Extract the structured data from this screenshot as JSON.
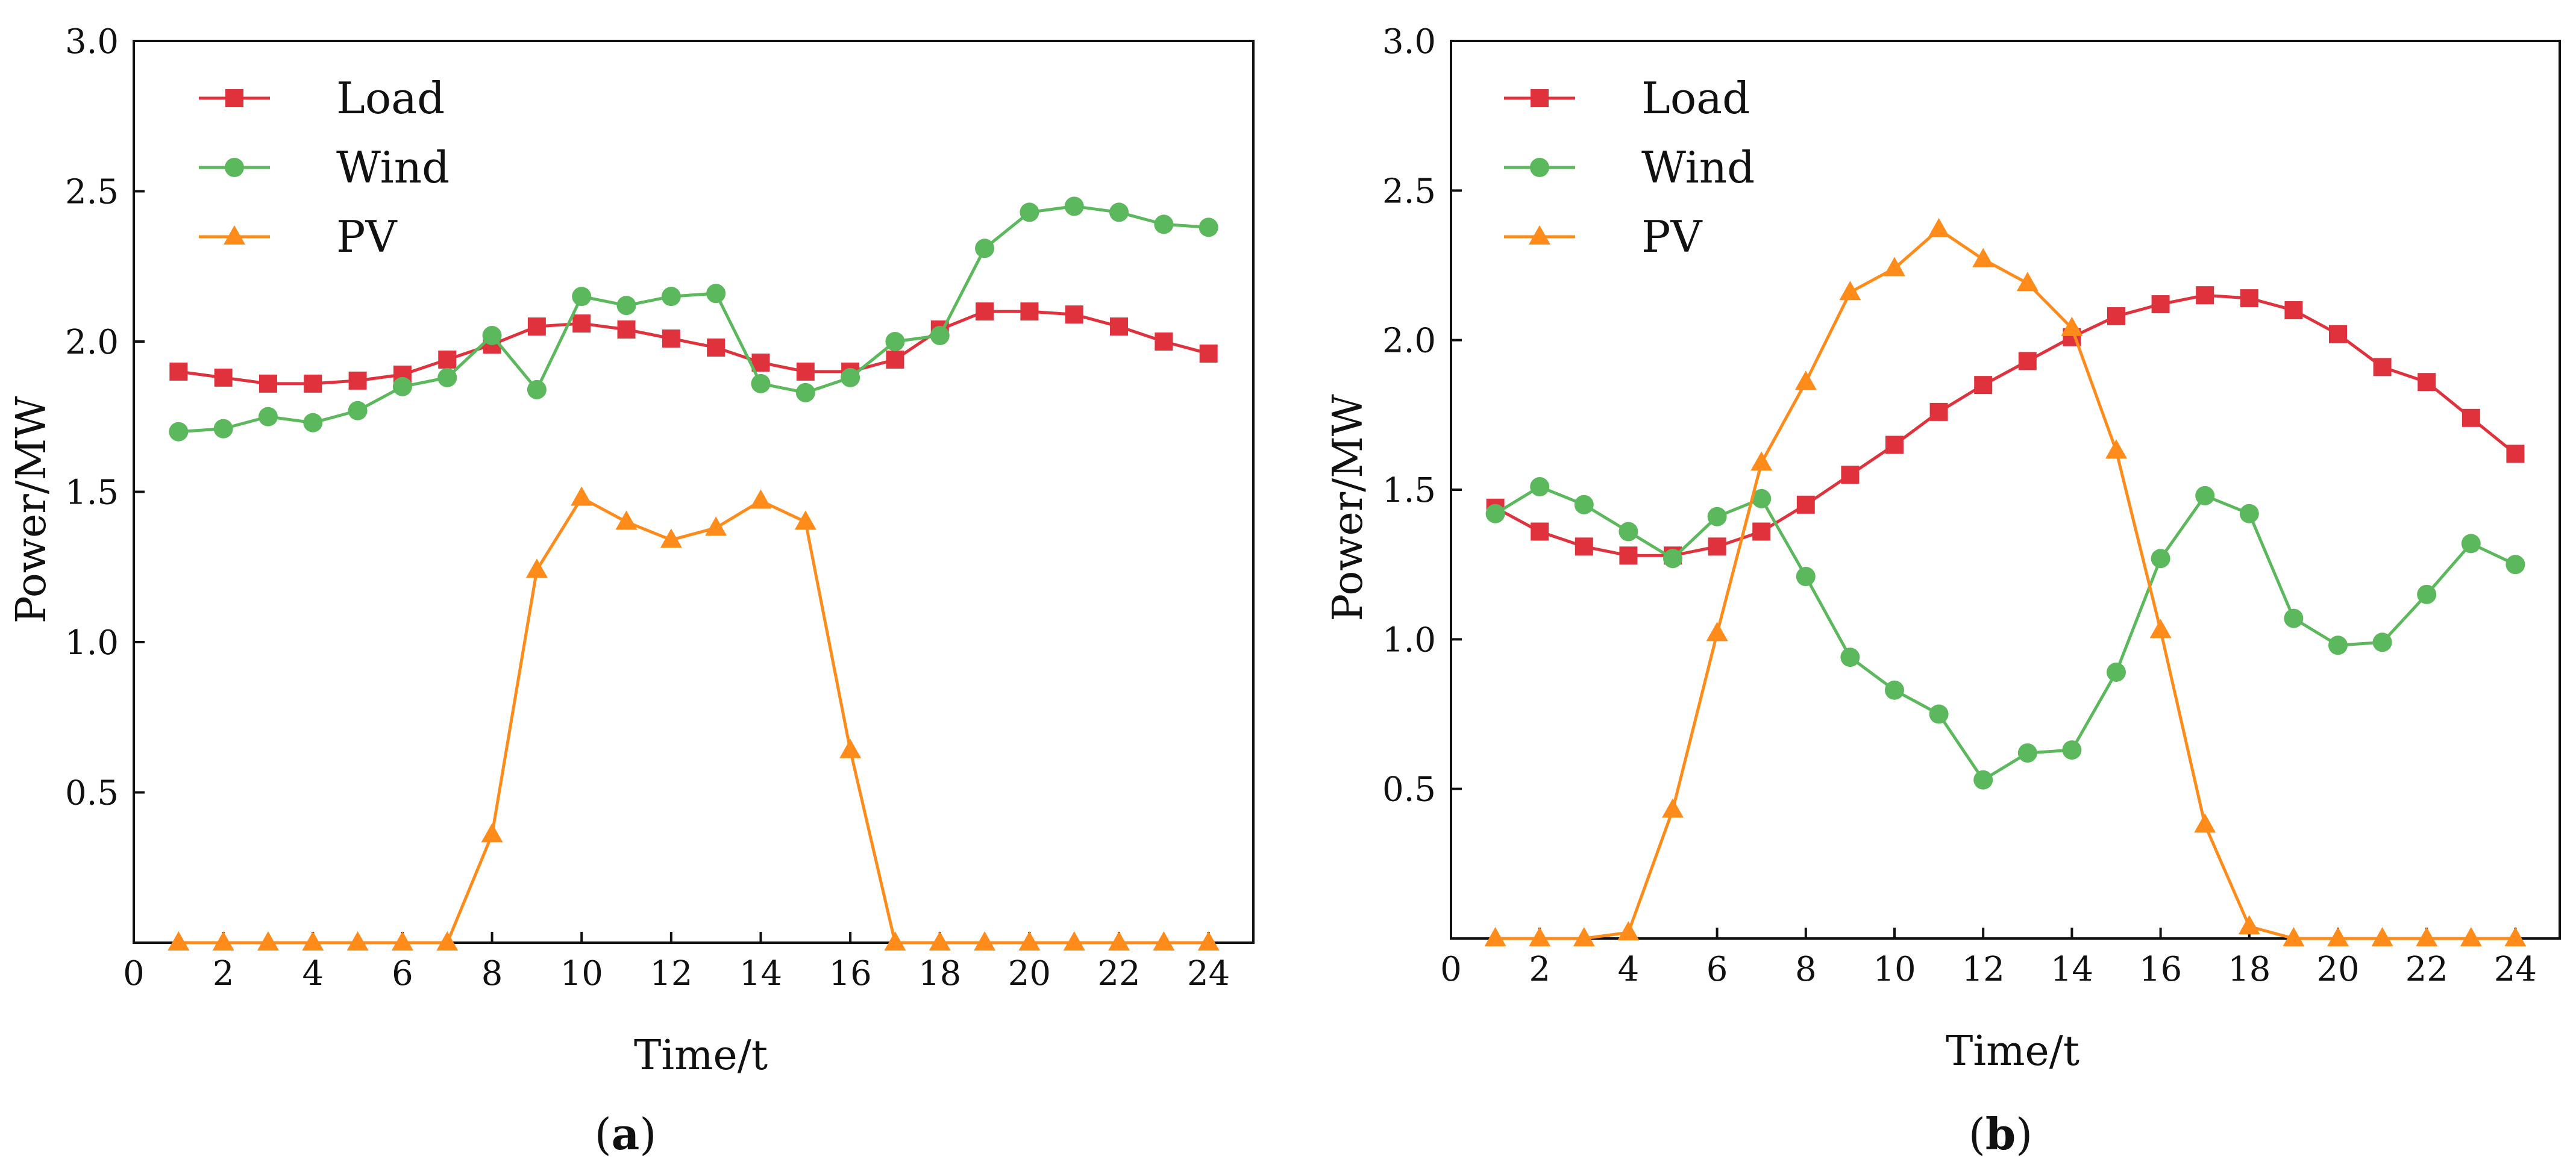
{
  "chart_data": [
    {
      "type": "line",
      "panel_label": "a",
      "title": "",
      "xlabel": "Time/t",
      "ylabel": "Power/MW",
      "xlim": [
        0,
        25
      ],
      "ylim": [
        0,
        3.0
      ],
      "xticks": [
        0,
        2,
        4,
        6,
        8,
        10,
        12,
        14,
        16,
        18,
        20,
        22,
        24
      ],
      "yticks": [
        0.5,
        1.0,
        1.5,
        2.0,
        2.5,
        3.0
      ],
      "ytick_labels": [
        "0.5",
        "1.0",
        "1.5",
        "2.0",
        "2.5",
        "3.0"
      ],
      "legend_position": "top-left",
      "x": [
        1,
        2,
        3,
        4,
        5,
        6,
        7,
        8,
        9,
        10,
        11,
        12,
        13,
        14,
        15,
        16,
        17,
        18,
        19,
        20,
        21,
        22,
        23,
        24
      ],
      "series": [
        {
          "name": "Load",
          "color": "#e0323c",
          "marker": "square",
          "values": [
            1.9,
            1.88,
            1.86,
            1.86,
            1.87,
            1.89,
            1.94,
            1.99,
            2.05,
            2.06,
            2.04,
            2.01,
            1.98,
            1.93,
            1.9,
            1.9,
            1.94,
            2.04,
            2.1,
            2.1,
            2.09,
            2.05,
            2.0,
            1.96
          ]
        },
        {
          "name": "Wind",
          "color": "#5cb85c",
          "marker": "circle",
          "values": [
            1.7,
            1.71,
            1.75,
            1.73,
            1.77,
            1.85,
            1.88,
            2.02,
            1.84,
            2.15,
            2.12,
            2.15,
            2.16,
            1.86,
            1.83,
            1.88,
            2.0,
            2.02,
            2.31,
            2.43,
            2.45,
            2.43,
            2.39,
            2.38
          ]
        },
        {
          "name": "PV",
          "color": "#ff8c1a",
          "marker": "triangle",
          "values": [
            0,
            0,
            0,
            0,
            0,
            0,
            0,
            0.36,
            1.24,
            1.48,
            1.4,
            1.34,
            1.38,
            1.47,
            1.4,
            0.64,
            0,
            0,
            0,
            0,
            0,
            0,
            0,
            0
          ]
        }
      ]
    },
    {
      "type": "line",
      "panel_label": "b",
      "title": "",
      "xlabel": "Time/t",
      "ylabel": "Power/MW",
      "xlim": [
        0,
        25
      ],
      "ylim": [
        0,
        3.0
      ],
      "xticks": [
        0,
        2,
        4,
        6,
        8,
        10,
        12,
        14,
        16,
        18,
        20,
        22,
        24
      ],
      "yticks": [
        0.5,
        1.0,
        1.5,
        2.0,
        2.5,
        3.0
      ],
      "ytick_labels": [
        "0.5",
        "1.0",
        "1.5",
        "2.0",
        "2.5",
        "3.0"
      ],
      "legend_position": "top-left",
      "x": [
        1,
        2,
        3,
        4,
        5,
        6,
        7,
        8,
        9,
        10,
        11,
        12,
        13,
        14,
        15,
        16,
        17,
        18,
        19,
        20,
        21,
        22,
        23,
        24
      ],
      "series": [
        {
          "name": "Load",
          "color": "#e0323c",
          "marker": "square",
          "values": [
            1.44,
            1.36,
            1.31,
            1.28,
            1.28,
            1.31,
            1.36,
            1.45,
            1.55,
            1.65,
            1.76,
            1.85,
            1.93,
            2.01,
            2.08,
            2.12,
            2.15,
            2.14,
            2.1,
            2.02,
            1.91,
            1.86,
            1.74,
            1.62
          ]
        },
        {
          "name": "Wind",
          "color": "#5cb85c",
          "marker": "circle",
          "values": [
            1.42,
            1.51,
            1.45,
            1.36,
            1.27,
            1.41,
            1.47,
            1.21,
            0.94,
            0.83,
            0.75,
            0.53,
            0.62,
            0.63,
            0.89,
            1.27,
            1.48,
            1.42,
            1.07,
            0.98,
            0.99,
            1.15,
            1.32,
            1.25
          ]
        },
        {
          "name": "PV",
          "color": "#ff8c1a",
          "marker": "triangle",
          "values": [
            0,
            0,
            0,
            0.02,
            0.43,
            1.02,
            1.59,
            1.86,
            2.16,
            2.24,
            2.37,
            2.27,
            2.19,
            2.04,
            1.63,
            1.03,
            0.38,
            0.04,
            0,
            0,
            0,
            0,
            0,
            0
          ]
        }
      ]
    }
  ]
}
